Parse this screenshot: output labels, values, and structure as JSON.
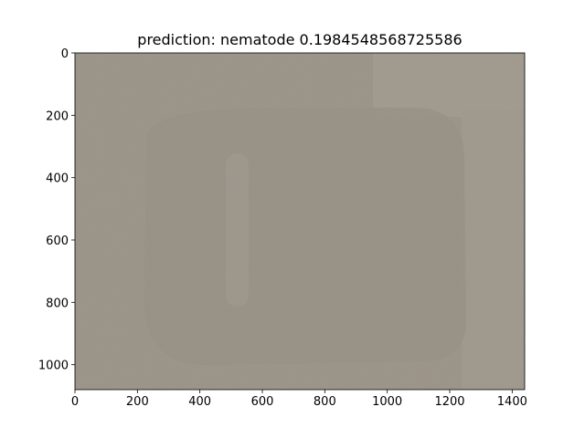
{
  "chart_data": {
    "type": "image",
    "title": "prediction: nematode 0.1984548568725586",
    "xlim": [
      0,
      1440
    ],
    "ylim": [
      1080,
      0
    ],
    "xticks": [
      0,
      200,
      400,
      600,
      800,
      1000,
      1200,
      1400
    ],
    "yticks": [
      0,
      200,
      400,
      600,
      800,
      1000
    ]
  }
}
